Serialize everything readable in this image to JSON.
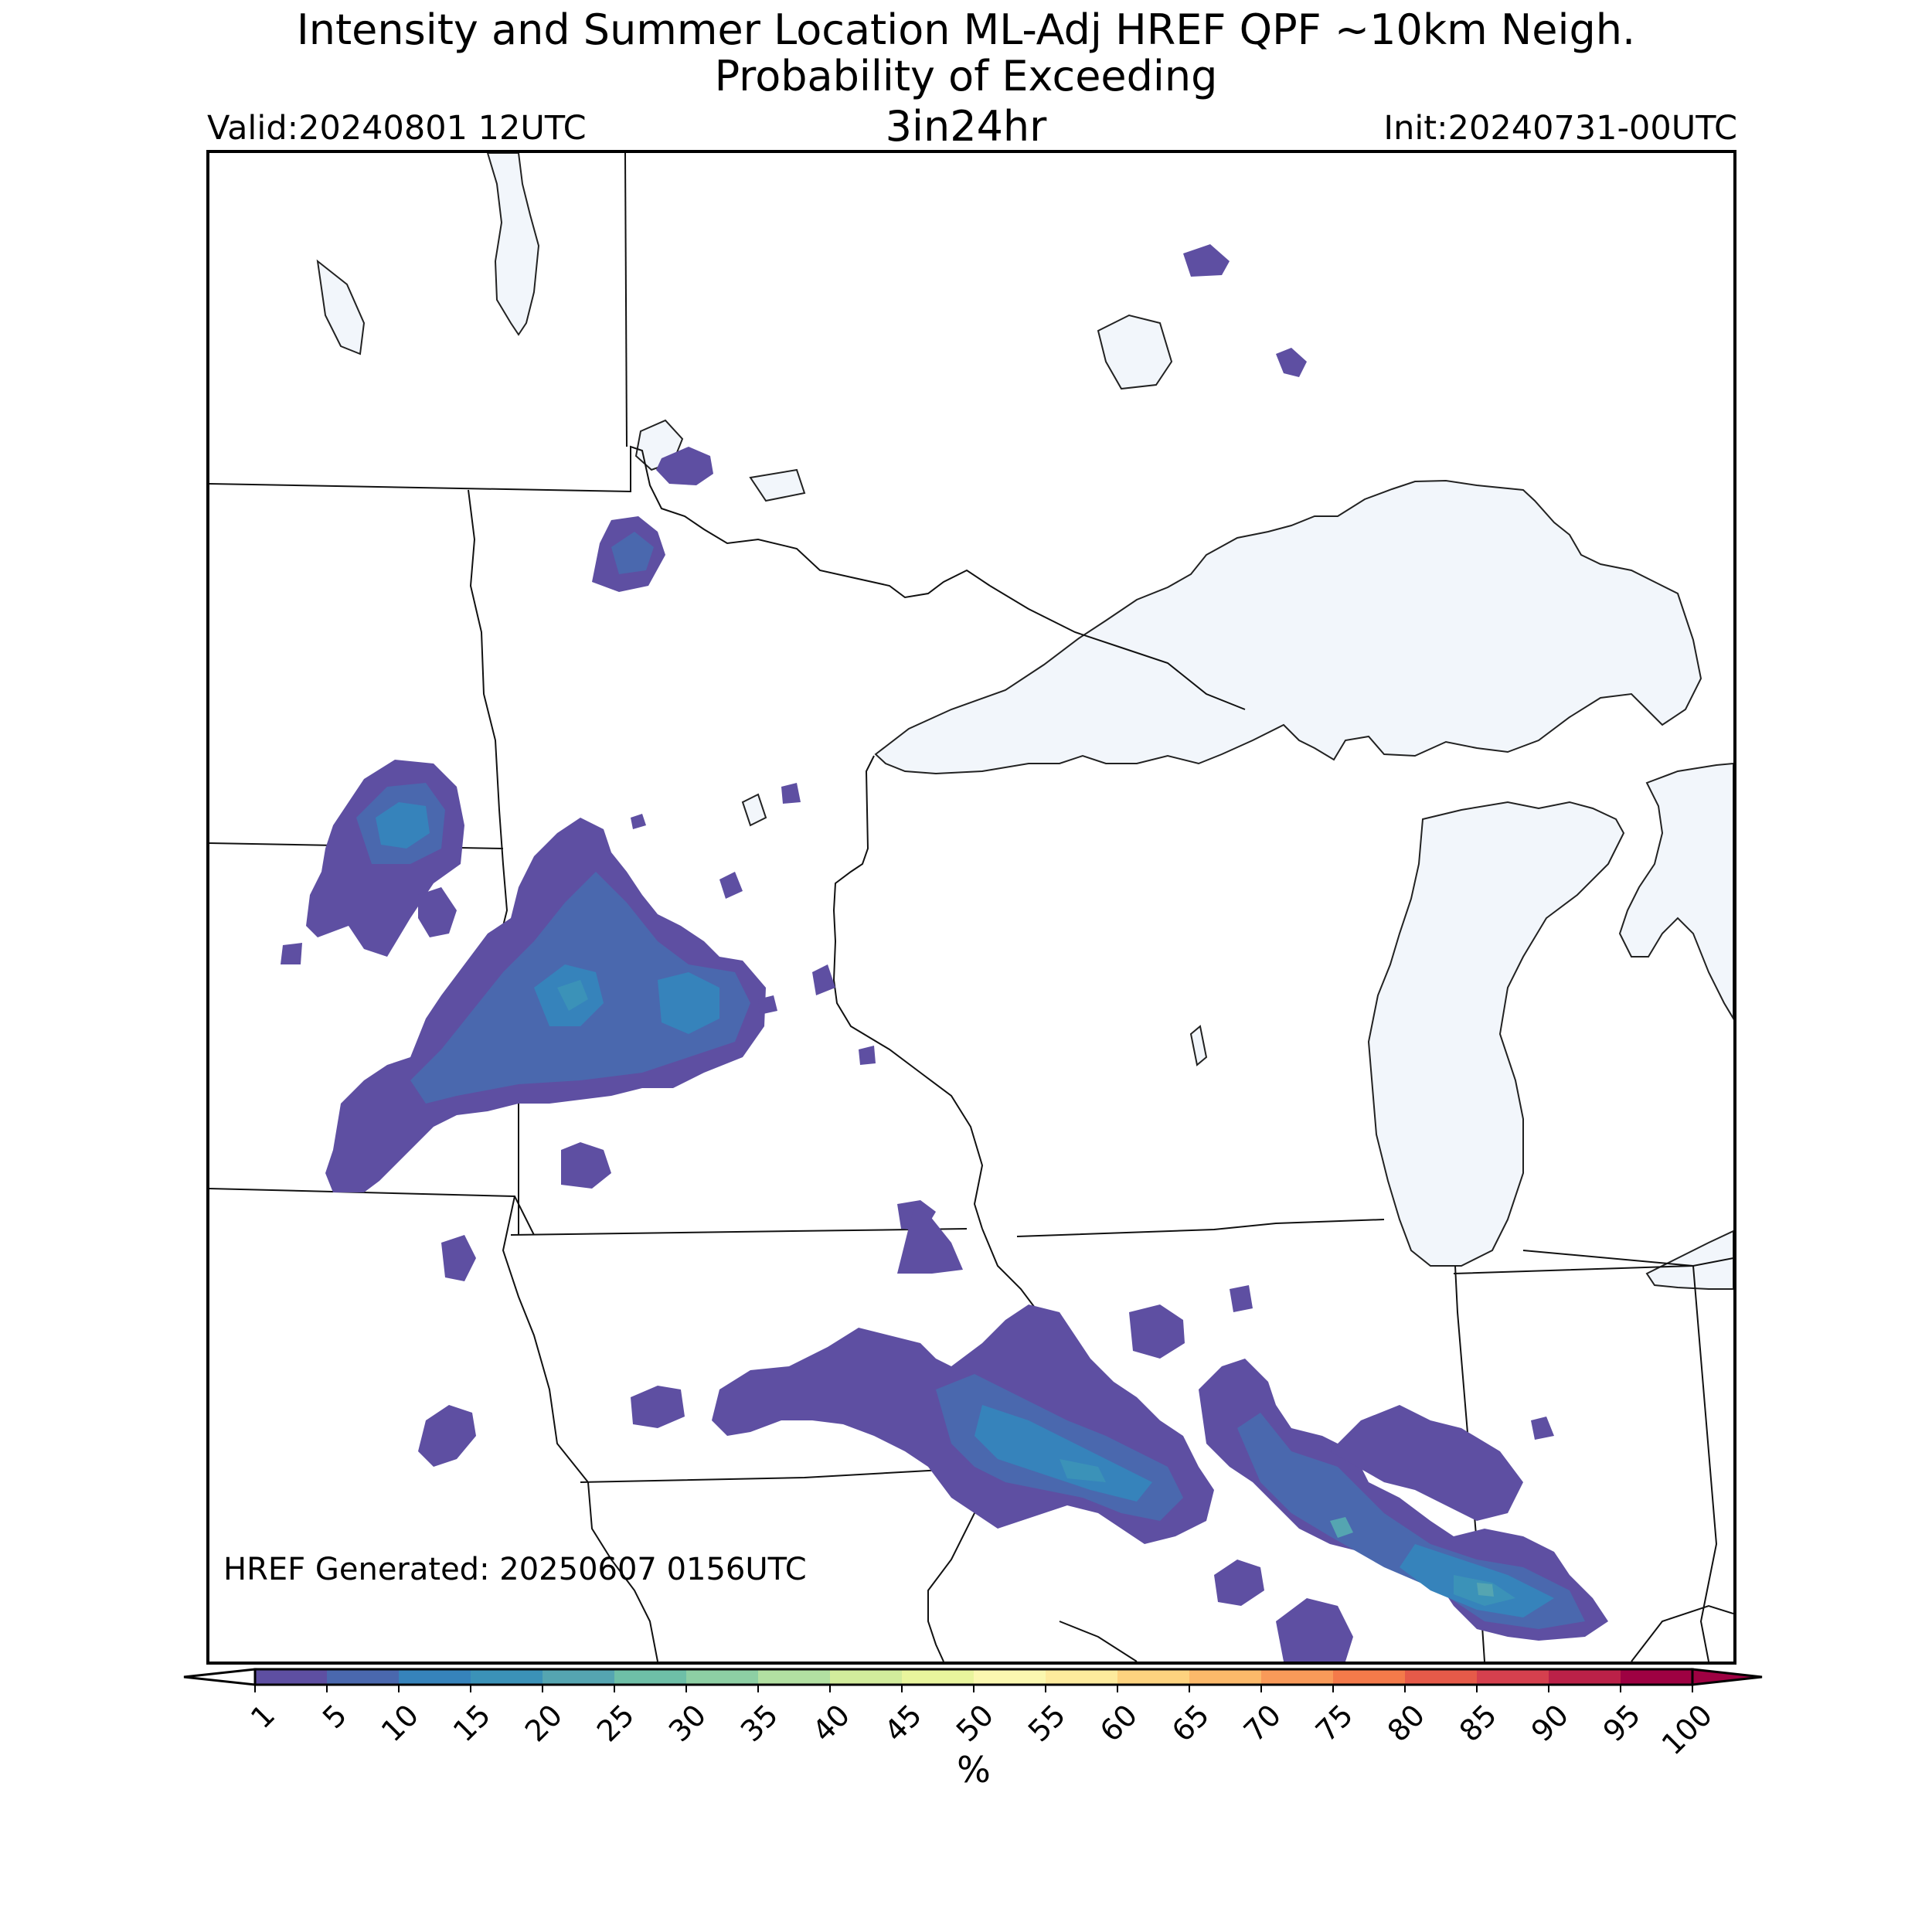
{
  "title": {
    "line1": "Intensity and Summer Location ML-Adj HREF QPF ~10km Neigh.",
    "line2": "Probability of Exceeding",
    "threshold": "3in24hr",
    "valid": "Valid:20240801 12UTC",
    "init": "Init:20240731-00UTC"
  },
  "map": {
    "generated_label": "HREF Generated: 20250607 0156UTC",
    "region": "Upper Midwest / Great Lakes",
    "water_color": "#f2f6fb",
    "boundary_color": "#000000",
    "probability_areas": [
      {
        "id": "northern-minnesota-cluster",
        "peak_percent": 10
      },
      {
        "id": "southeast-north-dakota",
        "peak_percent": 15
      },
      {
        "id": "southern-minnesota-band",
        "peak_percent": 20
      },
      {
        "id": "iowa-wisconsin-band",
        "peak_percent": 20
      },
      {
        "id": "northern-illinois-indiana-band",
        "peak_percent": 25
      },
      {
        "id": "isolated-cells",
        "peak_percent": 5
      }
    ]
  },
  "colorbar": {
    "unit": "%",
    "ticks": [
      "1",
      "5",
      "10",
      "15",
      "20",
      "25",
      "30",
      "35",
      "40",
      "45",
      "50",
      "55",
      "60",
      "65",
      "70",
      "75",
      "80",
      "85",
      "90",
      "95",
      "100"
    ],
    "colors": [
      "#5e4fa2",
      "#4a68ae",
      "#3683bb",
      "#3b92b8",
      "#55a5b1",
      "#6ebfa7",
      "#8dcfa4",
      "#b2e0a2",
      "#d2ec9c",
      "#e9f59d",
      "#fbf8b0",
      "#feeb9d",
      "#fed37f",
      "#fcb96a",
      "#f99a59",
      "#f47a4a",
      "#e65a49",
      "#d5404e",
      "#bb2148",
      "#9e0142"
    ],
    "under_color": "#ffffff",
    "over_color": "#9e0142"
  }
}
